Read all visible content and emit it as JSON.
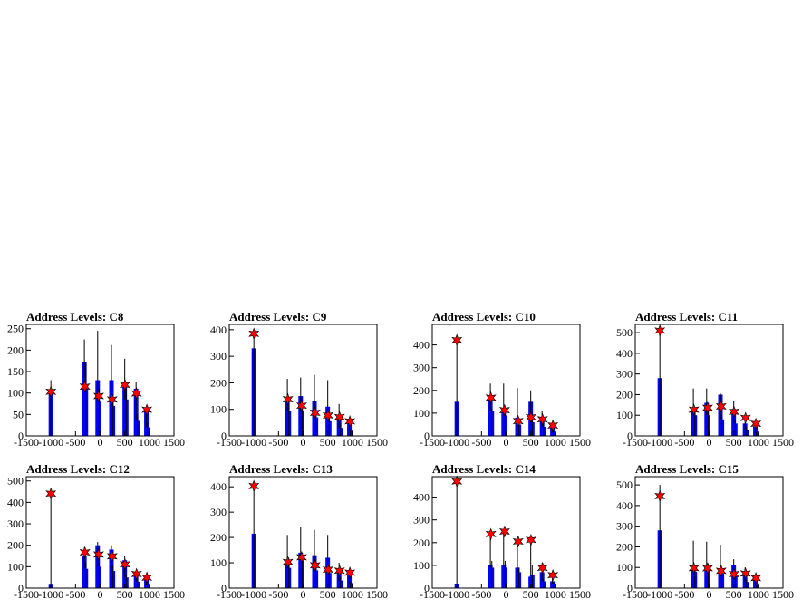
{
  "figure": {
    "background": "#ffffff",
    "frame_color": "#000000",
    "outline_color": "#000000",
    "fill_color": "#0000ff",
    "marker_color": "#ff0000"
  },
  "chart_data": [
    {
      "type": "bar",
      "title": "Address Levels: C8",
      "xlim": [
        -1500,
        1500
      ],
      "ylim": [
        0,
        260
      ],
      "xticks": [
        -1500,
        -1000,
        -500,
        0,
        500,
        1000,
        1500
      ],
      "yticks": [
        0,
        50,
        100,
        150,
        200,
        250
      ],
      "xtick_labels": [
        "-1500",
        "-1000",
        "-500",
        "0",
        "500",
        "1000",
        "1500"
      ],
      "ytick_labels": [
        "0",
        "50",
        "100",
        "150",
        "200",
        "250"
      ],
      "bars": [
        [
          -1000,
          130,
          100
        ],
        [
          -320,
          225,
          172
        ],
        [
          -290,
          170,
          120
        ],
        [
          -50,
          245,
          130
        ],
        [
          -20,
          110,
          80
        ],
        [
          230,
          212,
          130
        ],
        [
          260,
          95,
          70
        ],
        [
          500,
          180,
          120
        ],
        [
          530,
          110,
          85
        ],
        [
          730,
          125,
          110
        ],
        [
          760,
          50,
          35
        ],
        [
          940,
          70,
          60
        ],
        [
          960,
          30,
          20
        ]
      ],
      "peaks": [
        [
          -1000,
          103
        ],
        [
          -310,
          115
        ],
        [
          -30,
          93
        ],
        [
          245,
          85
        ],
        [
          505,
          119
        ],
        [
          740,
          99
        ],
        [
          950,
          61
        ]
      ]
    },
    {
      "type": "bar",
      "title": "Address Levels: C9",
      "xlim": [
        -1500,
        1500
      ],
      "ylim": [
        0,
        420
      ],
      "xticks": [
        -1500,
        -1000,
        -500,
        0,
        500,
        1000,
        1500
      ],
      "yticks": [
        0,
        100,
        200,
        300,
        400
      ],
      "xtick_labels": [
        "-1500",
        "-1000",
        "-500",
        "0",
        "500",
        "1000",
        "1500"
      ],
      "ytick_labels": [
        "0",
        "100",
        "200",
        "300",
        "400"
      ],
      "bars": [
        [
          -1000,
          385,
          330
        ],
        [
          -320,
          215,
          140
        ],
        [
          -290,
          120,
          95
        ],
        [
          -50,
          220,
          150
        ],
        [
          -20,
          120,
          95
        ],
        [
          230,
          230,
          130
        ],
        [
          260,
          90,
          70
        ],
        [
          500,
          210,
          110
        ],
        [
          530,
          70,
          55
        ],
        [
          730,
          120,
          75
        ],
        [
          760,
          50,
          30
        ],
        [
          940,
          55,
          50
        ],
        [
          960,
          25,
          20
        ]
      ],
      "peaks": [
        [
          -1000,
          385
        ],
        [
          -310,
          138
        ],
        [
          -30,
          114
        ],
        [
          245,
          87
        ],
        [
          505,
          77
        ],
        [
          740,
          71
        ],
        [
          950,
          55
        ]
      ]
    },
    {
      "type": "bar",
      "title": "Address Levels: C10",
      "xlim": [
        -1500,
        1500
      ],
      "ylim": [
        0,
        490
      ],
      "xticks": [
        -1500,
        -1000,
        -500,
        0,
        500,
        1000,
        1500
      ],
      "yticks": [
        0,
        100,
        200,
        300,
        400
      ],
      "xtick_labels": [
        "-1500",
        "-1000",
        "-500",
        "0",
        "500",
        "1000",
        "1500"
      ],
      "ytick_labels": [
        "0",
        "100",
        "200",
        "300",
        "400"
      ],
      "bars": [
        [
          -1000,
          420,
          150
        ],
        [
          -320,
          230,
          170
        ],
        [
          -290,
          120,
          110
        ],
        [
          -50,
          230,
          120
        ],
        [
          -20,
          110,
          90
        ],
        [
          230,
          210,
          80
        ],
        [
          260,
          70,
          50
        ],
        [
          500,
          200,
          150
        ],
        [
          530,
          80,
          60
        ],
        [
          730,
          110,
          70
        ],
        [
          760,
          50,
          40
        ],
        [
          940,
          45,
          40
        ],
        [
          960,
          20,
          15
        ]
      ],
      "peaks": [
        [
          -1000,
          421
        ],
        [
          -310,
          168
        ],
        [
          -30,
          113
        ],
        [
          245,
          65
        ],
        [
          505,
          82
        ],
        [
          740,
          73
        ],
        [
          950,
          46
        ]
      ]
    },
    {
      "type": "bar",
      "title": "Address Levels: C11",
      "xlim": [
        -1500,
        1500
      ],
      "ylim": [
        0,
        540
      ],
      "xticks": [
        -1500,
        -1000,
        -500,
        0,
        500,
        1000,
        1500
      ],
      "yticks": [
        0,
        100,
        200,
        300,
        400,
        500
      ],
      "xtick_labels": [
        "-1500",
        "-1000",
        "-500",
        "0",
        "500",
        "1000",
        "1500"
      ],
      "ytick_labels": [
        "0",
        "100",
        "200",
        "300",
        "400",
        "500"
      ],
      "bars": [
        [
          -1000,
          510,
          280
        ],
        [
          -320,
          230,
          130
        ],
        [
          -290,
          120,
          100
        ],
        [
          -50,
          230,
          160
        ],
        [
          -20,
          120,
          100
        ],
        [
          230,
          205,
          200
        ],
        [
          260,
          110,
          80
        ],
        [
          500,
          170,
          130
        ],
        [
          530,
          80,
          60
        ],
        [
          730,
          100,
          60
        ],
        [
          760,
          45,
          30
        ],
        [
          940,
          65,
          45
        ],
        [
          960,
          20,
          15
        ]
      ],
      "peaks": [
        [
          -1000,
          510
        ],
        [
          -310,
          127
        ],
        [
          -30,
          136
        ],
        [
          245,
          143
        ],
        [
          505,
          117
        ],
        [
          740,
          87
        ],
        [
          950,
          59
        ]
      ]
    },
    {
      "type": "bar",
      "title": "Address Levels: C12",
      "xlim": [
        -1500,
        1500
      ],
      "ylim": [
        0,
        520
      ],
      "xticks": [
        -1500,
        -1000,
        -500,
        0,
        500,
        1000,
        1500
      ],
      "yticks": [
        0,
        100,
        200,
        300,
        400,
        500
      ],
      "xtick_labels": [
        "-1500",
        "-1000",
        "-500",
        "0",
        "500",
        "1000",
        "1500"
      ],
      "ytick_labels": [
        "0",
        "100",
        "200",
        "300",
        "400",
        "500"
      ],
      "bars": [
        [
          -1000,
          440,
          20
        ],
        [
          -320,
          190,
          150
        ],
        [
          -290,
          120,
          90
        ],
        [
          -50,
          215,
          200
        ],
        [
          -20,
          120,
          100
        ],
        [
          230,
          200,
          180
        ],
        [
          260,
          110,
          80
        ],
        [
          500,
          150,
          130
        ],
        [
          530,
          60,
          50
        ],
        [
          730,
          80,
          60
        ],
        [
          760,
          40,
          30
        ],
        [
          940,
          55,
          40
        ],
        [
          960,
          20,
          15
        ]
      ],
      "peaks": [
        [
          -1000,
          441
        ],
        [
          -310,
          167
        ],
        [
          -30,
          157
        ],
        [
          245,
          149
        ],
        [
          505,
          111
        ],
        [
          740,
          66
        ],
        [
          950,
          49
        ]
      ]
    },
    {
      "type": "bar",
      "title": "Address Levels: C13",
      "xlim": [
        -1500,
        1500
      ],
      "ylim": [
        0,
        440
      ],
      "xticks": [
        -1500,
        -1000,
        -500,
        0,
        500,
        1000,
        1500
      ],
      "yticks": [
        0,
        100,
        200,
        300,
        400
      ],
      "xtick_labels": [
        "-1500",
        "-1000",
        "-500",
        "0",
        "500",
        "1000",
        "1500"
      ],
      "ytick_labels": [
        "0",
        "100",
        "200",
        "300",
        "400"
      ],
      "bars": [
        [
          -1000,
          405,
          215
        ],
        [
          -320,
          210,
          100
        ],
        [
          -290,
          120,
          80
        ],
        [
          -50,
          240,
          140
        ],
        [
          -20,
          140,
          110
        ],
        [
          230,
          230,
          130
        ],
        [
          260,
          90,
          70
        ],
        [
          500,
          210,
          120
        ],
        [
          530,
          80,
          60
        ],
        [
          730,
          100,
          60
        ],
        [
          760,
          45,
          30
        ],
        [
          940,
          70,
          50
        ],
        [
          960,
          25,
          20
        ]
      ],
      "peaks": [
        [
          -1000,
          403
        ],
        [
          -310,
          103
        ],
        [
          -30,
          122
        ],
        [
          245,
          90
        ],
        [
          505,
          73
        ],
        [
          740,
          69
        ],
        [
          950,
          61
        ]
      ]
    },
    {
      "type": "bar",
      "title": "Address Levels: C14",
      "xlim": [
        -1500,
        1500
      ],
      "ylim": [
        0,
        490
      ],
      "xticks": [
        -1500,
        -1000,
        -500,
        0,
        500,
        1000,
        1500
      ],
      "yticks": [
        0,
        100,
        200,
        300,
        400
      ],
      "xtick_labels": [
        "-1500",
        "-1000",
        "-500",
        "0",
        "500",
        "1000",
        "1500"
      ],
      "ytick_labels": [
        "0",
        "100",
        "200",
        "300",
        "400"
      ],
      "bars": [
        [
          -1000,
          470,
          20
        ],
        [
          -320,
          240,
          100
        ],
        [
          -290,
          120,
          90
        ],
        [
          -50,
          250,
          100
        ],
        [
          -20,
          120,
          90
        ],
        [
          230,
          205,
          90
        ],
        [
          260,
          90,
          70
        ],
        [
          500,
          215,
          50
        ],
        [
          530,
          100,
          60
        ],
        [
          730,
          110,
          70
        ],
        [
          760,
          40,
          30
        ],
        [
          940,
          60,
          30
        ],
        [
          960,
          25,
          20
        ]
      ],
      "peaks": [
        [
          -1000,
          469
        ],
        [
          -310,
          238
        ],
        [
          -30,
          249
        ],
        [
          245,
          205
        ],
        [
          505,
          212
        ],
        [
          740,
          89
        ],
        [
          950,
          57
        ]
      ]
    },
    {
      "type": "bar",
      "title": "Address Levels: C15",
      "xlim": [
        -1500,
        1500
      ],
      "ylim": [
        0,
        540
      ],
      "xticks": [
        -1500,
        -1000,
        -500,
        0,
        500,
        1000,
        1500
      ],
      "yticks": [
        0,
        100,
        200,
        300,
        400,
        500
      ],
      "xtick_labels": [
        "-1500",
        "-1000",
        "-500",
        "0",
        "500",
        "1000",
        "1500"
      ],
      "ytick_labels": [
        "0",
        "100",
        "200",
        "300",
        "400",
        "500"
      ],
      "bars": [
        [
          -1000,
          500,
          280
        ],
        [
          -320,
          230,
          100
        ],
        [
          -290,
          110,
          80
        ],
        [
          -50,
          225,
          100
        ],
        [
          -20,
          120,
          90
        ],
        [
          230,
          210,
          90
        ],
        [
          260,
          90,
          70
        ],
        [
          500,
          140,
          110
        ],
        [
          530,
          80,
          60
        ],
        [
          730,
          100,
          60
        ],
        [
          760,
          45,
          30
        ],
        [
          940,
          55,
          40
        ],
        [
          960,
          20,
          15
        ]
      ],
      "peaks": [
        [
          -1000,
          446
        ],
        [
          -310,
          97
        ],
        [
          -30,
          96
        ],
        [
          245,
          84
        ],
        [
          505,
          68
        ],
        [
          740,
          71
        ],
        [
          950,
          49
        ]
      ]
    }
  ]
}
